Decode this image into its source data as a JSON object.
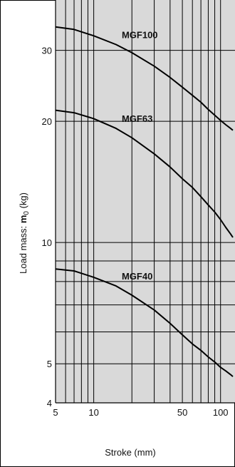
{
  "chart_data": {
    "type": "line",
    "xlabel": "Stroke (mm)",
    "ylabel_prefix": "Load mass: ",
    "ylabel_symbol": "m",
    "ylabel_subscript": "0",
    "ylabel_unit": " (kg)",
    "x_scale": "log",
    "y_scale": "log",
    "xlim": [
      5,
      130
    ],
    "ylim": [
      4,
      40
    ],
    "grid": true,
    "x_ticks": [
      {
        "value": 5,
        "label": "5"
      },
      {
        "value": 10,
        "label": "10"
      },
      {
        "value": 50,
        "label": "50"
      },
      {
        "value": 100,
        "label": "100"
      }
    ],
    "y_ticks": [
      {
        "value": 4,
        "label": "4"
      },
      {
        "value": 5,
        "label": "5"
      },
      {
        "value": 10,
        "label": "10"
      },
      {
        "value": 20,
        "label": "20"
      },
      {
        "value": 30,
        "label": "30"
      }
    ],
    "series": [
      {
        "name": "MGF100",
        "x": [
          5,
          7,
          10,
          15,
          20,
          30,
          40,
          50,
          60,
          70,
          80,
          90,
          100,
          110,
          120,
          125
        ],
        "y": [
          34.3,
          33.8,
          32.6,
          31.0,
          29.6,
          27.4,
          25.7,
          24.3,
          23.2,
          22.3,
          21.4,
          20.7,
          20.1,
          19.6,
          19.2,
          19.0
        ]
      },
      {
        "name": "MGF63",
        "x": [
          5,
          7,
          10,
          15,
          20,
          30,
          40,
          50,
          60,
          70,
          80,
          90,
          100,
          110,
          120,
          125
        ],
        "y": [
          21.3,
          21.0,
          20.3,
          19.2,
          18.2,
          16.6,
          15.4,
          14.4,
          13.7,
          13.0,
          12.4,
          11.9,
          11.4,
          10.9,
          10.5,
          10.3
        ]
      },
      {
        "name": "MGF40",
        "x": [
          5,
          7,
          10,
          15,
          20,
          30,
          40,
          50,
          60,
          70,
          80,
          90,
          100,
          110,
          120,
          125
        ],
        "y": [
          8.6,
          8.5,
          8.2,
          7.8,
          7.4,
          6.8,
          6.3,
          5.9,
          5.6,
          5.4,
          5.2,
          5.05,
          4.9,
          4.8,
          4.7,
          4.65
        ]
      }
    ]
  }
}
